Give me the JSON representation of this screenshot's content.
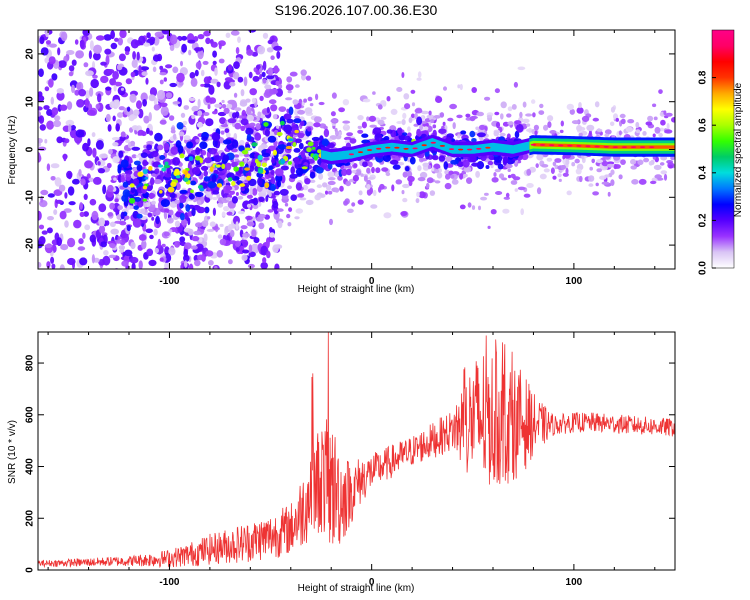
{
  "title": "S196.2026.107.00.36.E30",
  "chart_data": [
    {
      "type": "heatmap",
      "xlabel": "Height of straight line (km)",
      "ylabel": "Frequency (Hz)",
      "xlim": [
        -165,
        150
      ],
      "ylim": [
        -25,
        25
      ],
      "xticks": [
        -100,
        0,
        100
      ],
      "yticks": [
        -20,
        -10,
        0,
        10,
        20
      ],
      "colorbar": {
        "label": "Normalized spectral amplitude",
        "range": [
          0,
          1
        ],
        "ticks": [
          0.0,
          0.2,
          0.4,
          0.6,
          0.8
        ],
        "colors": [
          "#ffffff",
          "#d9c4f5",
          "#9933ff",
          "#5500ff",
          "#0000ff",
          "#0077ff",
          "#00dddd",
          "#00cc66",
          "#33ff00",
          "#aaff00",
          "#ffff00",
          "#ffaa00",
          "#ff3300",
          "#ff0000",
          "#ff0066",
          "#ff0088"
        ]
      },
      "ridge": {
        "x": [
          -120,
          -100,
          -80,
          -60,
          -45,
          -35,
          -25,
          -20,
          -10,
          0,
          10,
          20,
          30,
          40,
          50,
          60,
          70,
          75,
          80,
          100,
          120,
          150
        ],
        "freq": [
          -7,
          -6,
          -4,
          -2,
          0,
          0.5,
          -1,
          -1.5,
          -1,
          0,
          0.5,
          0,
          1.5,
          0,
          0,
          0.5,
          0,
          0.5,
          1,
          0.8,
          0.5,
          0.5
        ]
      }
    },
    {
      "type": "line",
      "xlabel": "Height of straight line (km)",
      "ylabel": "SNR (10 * v/v)",
      "xlim": [
        -165,
        150
      ],
      "ylim": [
        0,
        920
      ],
      "xticks": [
        -100,
        0,
        100
      ],
      "yticks": [
        0,
        200,
        400,
        600,
        800
      ],
      "color": "#ee3333",
      "series": [
        {
          "name": "SNR",
          "x": [
            -165,
            -140,
            -120,
            -100,
            -90,
            -80,
            -70,
            -60,
            -50,
            -40,
            -35,
            -30,
            -25,
            -20,
            -15,
            -10,
            -5,
            0,
            10,
            20,
            30,
            40,
            45,
            50,
            55,
            60,
            65,
            70,
            75,
            80,
            85,
            90,
            100,
            110,
            120,
            130,
            140,
            150
          ],
          "y": [
            25,
            30,
            35,
            45,
            60,
            80,
            95,
            110,
            130,
            160,
            220,
            300,
            360,
            330,
            280,
            300,
            350,
            380,
            420,
            460,
            500,
            540,
            560,
            580,
            590,
            585,
            580,
            575,
            570,
            565,
            560,
            560,
            570,
            570,
            565,
            560,
            555,
            550
          ]
        }
      ],
      "envelope": {
        "x": [
          -165,
          -120,
          -100,
          -80,
          -60,
          -40,
          -30,
          -25,
          -20,
          -10,
          0,
          20,
          40,
          45,
          55,
          65,
          75,
          80,
          90,
          150
        ],
        "amplitude": [
          12,
          20,
          35,
          60,
          80,
          100,
          180,
          220,
          260,
          120,
          70,
          60,
          80,
          180,
          280,
          260,
          200,
          120,
          40,
          35
        ]
      }
    }
  ]
}
